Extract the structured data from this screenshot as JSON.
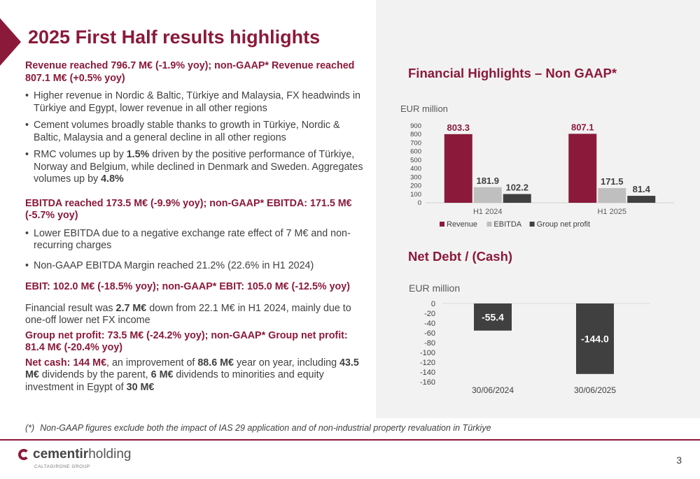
{
  "slide": {
    "title": "2025 First Half results highlights",
    "page_number": "3",
    "footnote_marker": "(*)",
    "footnote": "Non-GAAP figures exclude both the impact of IAS 29 application and of non-industrial property revaluation in Türkiye"
  },
  "left": {
    "revenue_heading": "Revenue reached 796.7 M€ (-1.9% yoy); non-GAAP* Revenue reached  807.1 M€ (+0.5% yoy)",
    "bullet1": "Higher revenue in Nordic & Baltic, Türkiye and Malaysia, FX headwinds in Türkiye and Egypt, lower revenue in all other regions",
    "bullet2": "Cement volumes broadly stable thanks to growth in Türkiye, Nordic & Baltic, Malaysia and a general decline in all other regions",
    "bullet3_a": "RMC volumes up by ",
    "bullet3_b": "1.5%",
    "bullet3_c": "  driven by the positive performance of Türkiye, Norway and Belgium, while declined in Denmark and Sweden. Aggregates volumes up by ",
    "bullet3_d": "4.8%",
    "ebitda_heading": "EBITDA reached 173.5 M€ (-9.9% yoy); non-GAAP* EBITDA: 171.5 M€ (-5.7% yoy)",
    "bullet4": "Lower EBITDA due to a negative exchange rate effect of 7 M€ and non-recurring charges",
    "bullet5": "Non-GAAP EBITDA Margin reached 21.2% (22.6% in H1 2024)",
    "ebit_heading": "EBIT: 102.0 M€ (-18.5% yoy); non-GAAP* EBIT: 105.0 M€ (-12.5% yoy)",
    "financial_a": "Financial result was ",
    "financial_b": "2.7 M€",
    "financial_c": "  down from 22.1 M€ in H1 2024, mainly due to one-off lower net FX income",
    "profit_heading": "Group net profit: 73.5 M€ (-24.2% yoy); non-GAAP* Group net profit: 81.4 M€ (-20.4% yoy)",
    "cash_a": "Net cash: 144 M€",
    "cash_b": ", an improvement of ",
    "cash_c": "88.6 M€",
    "cash_d": "  year on year, including ",
    "cash_e": "43.5 M€",
    "cash_f": " dividends by the parent, ",
    "cash_g": "6 M€",
    "cash_h": " dividends to minorities and equity investment in Egypt of ",
    "cash_i": "30 M€"
  },
  "logo": {
    "text_a": "cementir",
    "text_b": "holding",
    "sub": "CALTAGIRONE GROUP"
  },
  "colors": {
    "brand": "#8b1a3a",
    "ebitda": "#bfbfbf",
    "net_profit": "#404040",
    "net_debt": "#404040"
  },
  "chart_data": [
    {
      "type": "bar",
      "title": "Financial Highlights – Non GAAP*",
      "ylabel": "EUR million",
      "categories": [
        "H1 2024",
        "H1 2025"
      ],
      "ylim": [
        0,
        900
      ],
      "yticks": [
        0,
        100,
        200,
        300,
        400,
        500,
        600,
        700,
        800,
        900
      ],
      "series": [
        {
          "name": "Revenue",
          "values": [
            803.3,
            807.1
          ],
          "labels": [
            "803.3",
            "807.1"
          ],
          "color": "#8b1a3a"
        },
        {
          "name": "EBITDA",
          "values": [
            181.9,
            171.5
          ],
          "labels": [
            "181.9",
            "171.5"
          ],
          "color": "#bfbfbf"
        },
        {
          "name": "Group net profit",
          "values": [
            102.2,
            81.4
          ],
          "labels": [
            "102.2",
            "81.4"
          ],
          "color": "#404040"
        }
      ],
      "legend": "bottom",
      "grid": false
    },
    {
      "type": "bar",
      "title": "Net Debt / (Cash)",
      "ylabel": "EUR million",
      "categories": [
        "30/06/2024",
        "30/06/2025"
      ],
      "ylim": [
        -160,
        0
      ],
      "yticks": [
        0,
        -20,
        -40,
        -60,
        -80,
        -100,
        -120,
        -140,
        -160
      ],
      "series": [
        {
          "values": [
            -55.4,
            -144.0
          ],
          "labels": [
            "-55.4",
            "-144.0"
          ],
          "color": "#404040"
        }
      ],
      "legend": "none",
      "grid": false
    }
  ]
}
